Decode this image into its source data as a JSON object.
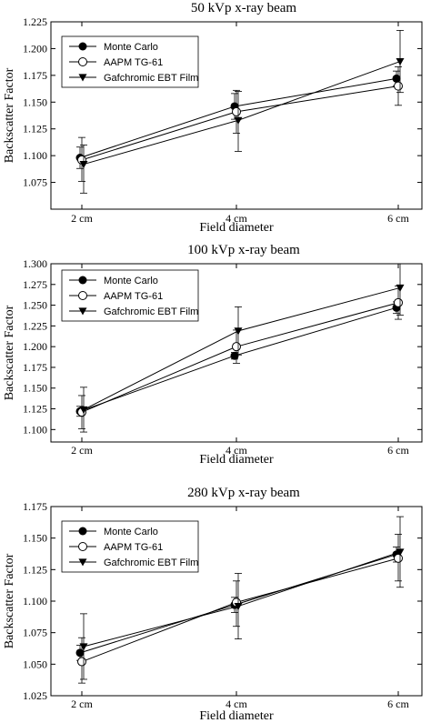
{
  "chart_data": [
    {
      "type": "line",
      "title": "50 kVp x-ray beam",
      "xlabel": "Field diameter",
      "ylabel": "Backscatter Factor",
      "categories": [
        "2 cm",
        "4 cm",
        "6 cm"
      ],
      "ylim": [
        1.05,
        1.225
      ],
      "yticks": [
        "1.075",
        "1.100",
        "1.125",
        "1.150",
        "1.175",
        "1.200",
        "1.225"
      ],
      "legend_position": "top-left",
      "series": [
        {
          "name": "Monte Carlo",
          "marker": "filled-circle",
          "values": [
            1.098,
            1.146,
            1.172
          ],
          "err_low": [
            1.088,
            1.134,
            1.165
          ],
          "err_high": [
            1.108,
            1.158,
            1.179
          ]
        },
        {
          "name": "AAPM TG-61",
          "marker": "open-circle",
          "values": [
            1.096,
            1.141,
            1.165
          ],
          "err_low": [
            1.076,
            1.121,
            1.147
          ],
          "err_high": [
            1.117,
            1.161,
            1.183
          ]
        },
        {
          "name": "Gafchromic EBT Film",
          "marker": "filled-triangle-down",
          "values": [
            1.092,
            1.133,
            1.188
          ],
          "err_low": [
            1.065,
            1.104,
            1.159
          ],
          "err_high": [
            1.11,
            1.16,
            1.217
          ]
        }
      ]
    },
    {
      "type": "line",
      "title": "100 kVp x-ray beam",
      "xlabel": "Field diameter",
      "ylabel": "Backscatter Factor",
      "categories": [
        "2 cm",
        "4 cm",
        "6 cm"
      ],
      "ylim": [
        1.085,
        1.3
      ],
      "yticks": [
        "1.100",
        "1.125",
        "1.150",
        "1.175",
        "1.200",
        "1.225",
        "1.250",
        "1.275",
        "1.300"
      ],
      "legend_position": "top-left",
      "series": [
        {
          "name": "Monte Carlo",
          "marker": "filled-circle",
          "values": [
            1.122,
            1.189,
            1.247
          ],
          "err_low": [
            1.116,
            1.185,
            1.24
          ],
          "err_high": [
            1.128,
            1.193,
            1.254
          ]
        },
        {
          "name": "AAPM TG-61",
          "marker": "open-circle",
          "values": [
            1.121,
            1.2,
            1.253
          ],
          "err_low": [
            1.101,
            1.18,
            1.233
          ],
          "err_high": [
            1.141,
            1.22,
            1.273
          ]
        },
        {
          "name": "Gafchromic EBT Film",
          "marker": "filled-triangle-down",
          "values": [
            1.124,
            1.219,
            1.271
          ],
          "err_low": [
            1.097,
            1.19,
            1.238
          ],
          "err_high": [
            1.151,
            1.248,
            1.3
          ]
        }
      ]
    },
    {
      "type": "line",
      "title": "280 kVp x-ray beam",
      "xlabel": "Field diameter",
      "ylabel": "Backscatter Factor",
      "categories": [
        "2 cm",
        "4 cm",
        "6 cm"
      ],
      "ylim": [
        1.025,
        1.175
      ],
      "yticks": [
        "1.025",
        "1.050",
        "1.075",
        "1.100",
        "1.125",
        "1.150",
        "1.175"
      ],
      "legend_position": "top-left",
      "series": [
        {
          "name": "Monte Carlo",
          "marker": "filled-circle",
          "values": [
            1.059,
            1.097,
            1.137
          ],
          "err_low": [
            1.053,
            1.091,
            1.131
          ],
          "err_high": [
            1.065,
            1.103,
            1.143
          ]
        },
        {
          "name": "AAPM TG-61",
          "marker": "open-circle",
          "values": [
            1.052,
            1.099,
            1.134
          ],
          "err_low": [
            1.035,
            1.08,
            1.116
          ],
          "err_high": [
            1.071,
            1.116,
            1.153
          ]
        },
        {
          "name": "Gafchromic EBT Film",
          "marker": "filled-triangle-down",
          "values": [
            1.064,
            1.096,
            1.139
          ],
          "err_low": [
            1.038,
            1.07,
            1.111
          ],
          "err_high": [
            1.09,
            1.122,
            1.167
          ]
        }
      ]
    }
  ]
}
